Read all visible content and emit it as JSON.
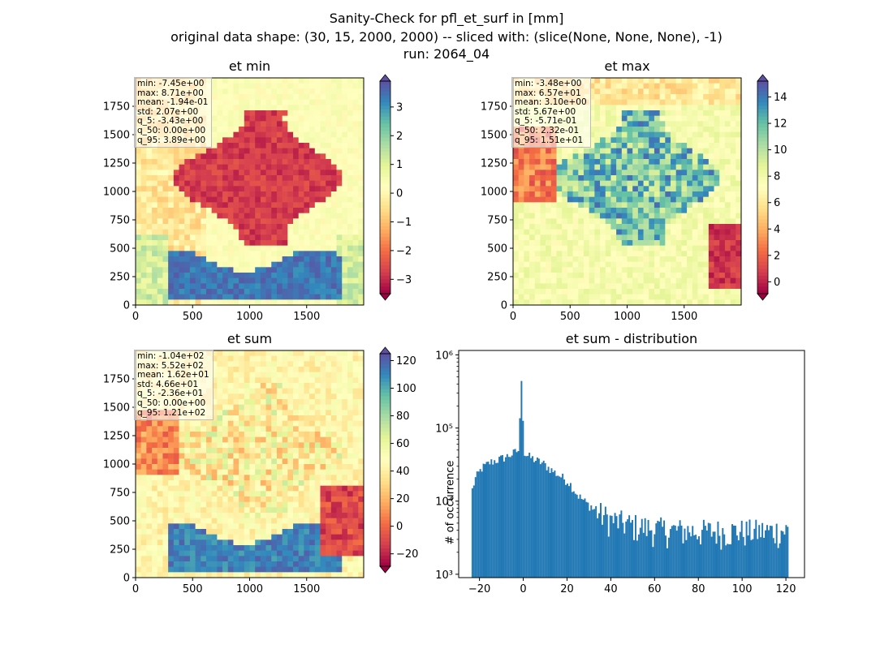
{
  "figure": {
    "title_line1": "Sanity-Check for pfl_et_surf in [mm]",
    "title_line2": "original data shape: (30, 15, 2000, 2000) -- sliced with: (slice(None, None, None), -1)",
    "title_line3": "run: 2064_04"
  },
  "colormap": "Spectral",
  "chart_data": [
    {
      "type": "heatmap",
      "title": "et min",
      "xticks": [
        "0",
        "500",
        "1000",
        "1500"
      ],
      "yticks": [
        "0",
        "250",
        "500",
        "750",
        "1000",
        "1250",
        "1500",
        "1750"
      ],
      "xlim": [
        0,
        2000
      ],
      "ylim": [
        0,
        2000
      ],
      "colorbar": {
        "range": [
          -3.5,
          3.9
        ],
        "ticks": [
          "−3",
          "−2",
          "−1",
          "0",
          "1",
          "2",
          "3"
        ],
        "tick_values": [
          -3,
          -2,
          -1,
          0,
          1,
          2,
          3
        ]
      },
      "stats": [
        "min: -7.45e+00",
        "max: 8.71e+00",
        "mean: -1.94e-01",
        "std: 2.07e+00",
        "q_5: -3.43e+00",
        "q_50: 0.00e+00",
        "q_95: 3.89e+00"
      ]
    },
    {
      "type": "heatmap",
      "title": "et max",
      "xticks": [
        "0",
        "500",
        "1000",
        "1500"
      ],
      "yticks": [
        "0",
        "250",
        "500",
        "750",
        "1000",
        "1250",
        "1500",
        "1750"
      ],
      "xlim": [
        0,
        2000
      ],
      "ylim": [
        0,
        2000
      ],
      "colorbar": {
        "range": [
          -0.9,
          15.2
        ],
        "ticks": [
          "0",
          "2",
          "4",
          "6",
          "8",
          "10",
          "12",
          "14"
        ],
        "tick_values": [
          0,
          2,
          4,
          6,
          8,
          10,
          12,
          14
        ]
      },
      "stats": [
        "min: -3.48e+00",
        "max: 6.57e+01",
        "mean: 3.10e+00",
        "std: 5.67e+00",
        "q_5: -5.71e-01",
        "q_50: 2.32e-01",
        "q_95: 1.51e+01"
      ]
    },
    {
      "type": "heatmap",
      "title": "et sum",
      "xticks": [
        "0",
        "500",
        "1000",
        "1500"
      ],
      "yticks": [
        "0",
        "250",
        "500",
        "750",
        "1000",
        "1250",
        "1500",
        "1750"
      ],
      "xlim": [
        0,
        2000
      ],
      "ylim": [
        0,
        2000
      ],
      "colorbar": {
        "range": [
          -29,
          125
        ],
        "ticks": [
          "−20",
          "0",
          "20",
          "40",
          "60",
          "80",
          "100",
          "120"
        ],
        "tick_values": [
          -20,
          0,
          20,
          40,
          60,
          80,
          100,
          120
        ]
      },
      "stats": [
        "min: -1.04e+02",
        "max: 5.52e+02",
        "mean: 1.62e+01",
        "std: 4.66e+01",
        "q_5: -2.36e+01",
        "q_50: 0.00e+00",
        "q_95: 1.21e+02"
      ]
    },
    {
      "type": "bar",
      "title": "et sum - distribution",
      "ylabel": "# of occurrence",
      "xlabel": "",
      "yscale": "log",
      "xlim": [
        -29.5,
        128.5
      ],
      "ylim": [
        900,
        1150000
      ],
      "xticks": [
        "−20",
        "0",
        "20",
        "40",
        "60",
        "80",
        "100",
        "120"
      ],
      "xtick_values": [
        -20,
        0,
        20,
        40,
        60,
        80,
        100,
        120
      ],
      "yticks": [
        "10³",
        "10⁴",
        "10⁵",
        "10⁶"
      ],
      "ytick_values": [
        1000,
        10000,
        100000,
        1000000
      ],
      "color": "#1f77b4",
      "bins": {
        "start": -23.6,
        "width": 0.724
      },
      "anchors": [
        [
          -23.6,
          13000
        ],
        [
          -22,
          20000
        ],
        [
          -19,
          28000
        ],
        [
          -15,
          34000
        ],
        [
          -10,
          38000
        ],
        [
          -5,
          44000
        ],
        [
          -2,
          50000
        ],
        [
          -0.5,
          850000
        ],
        [
          0.2,
          45000
        ],
        [
          3,
          40000
        ],
        [
          6,
          36000
        ],
        [
          9,
          33000
        ],
        [
          12,
          28000
        ],
        [
          15,
          24000
        ],
        [
          18,
          21000
        ],
        [
          21,
          18000
        ],
        [
          25,
          12000
        ],
        [
          30,
          8800
        ],
        [
          35,
          6800
        ],
        [
          40,
          5600
        ],
        [
          50,
          4700
        ],
        [
          60,
          4200
        ],
        [
          70,
          4000
        ],
        [
          80,
          3900
        ],
        [
          90,
          3900
        ],
        [
          100,
          3900
        ],
        [
          110,
          3900
        ],
        [
          120.8,
          4000
        ]
      ]
    }
  ]
}
